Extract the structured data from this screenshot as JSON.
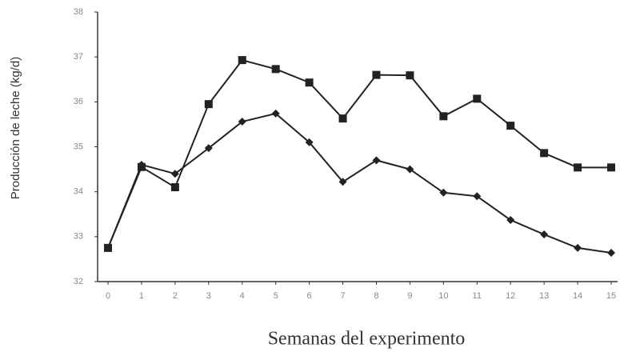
{
  "chart_data": {
    "type": "line",
    "xlabel": "Semanas del experimento",
    "ylabel": "Producción de leche (kg/d)",
    "x": [
      0,
      1,
      2,
      3,
      4,
      5,
      6,
      7,
      8,
      9,
      10,
      11,
      12,
      13,
      14,
      15
    ],
    "series": [
      {
        "color": "#222222",
        "marker": "square",
        "values": [
          32.75,
          34.55,
          34.1,
          35.95,
          36.93,
          36.73,
          36.43,
          35.63,
          36.6,
          36.59,
          35.68,
          36.07,
          35.47,
          34.86,
          34.54,
          34.54
        ]
      },
      {
        "color": "#222222",
        "marker": "diamond",
        "values": [
          32.75,
          34.6,
          34.4,
          34.97,
          35.56,
          35.74,
          35.1,
          34.22,
          34.7,
          34.5,
          33.98,
          33.9,
          33.37,
          33.05,
          32.75,
          32.64
        ]
      }
    ],
    "xlim": [
      0,
      15
    ],
    "xticks": [
      0,
      1,
      2,
      3,
      4,
      5,
      6,
      7,
      8,
      9,
      10,
      11,
      12,
      13,
      14,
      15
    ],
    "ylim": [
      32,
      38
    ],
    "yticks": [
      32,
      33,
      34,
      35,
      36,
      37,
      38
    ]
  }
}
